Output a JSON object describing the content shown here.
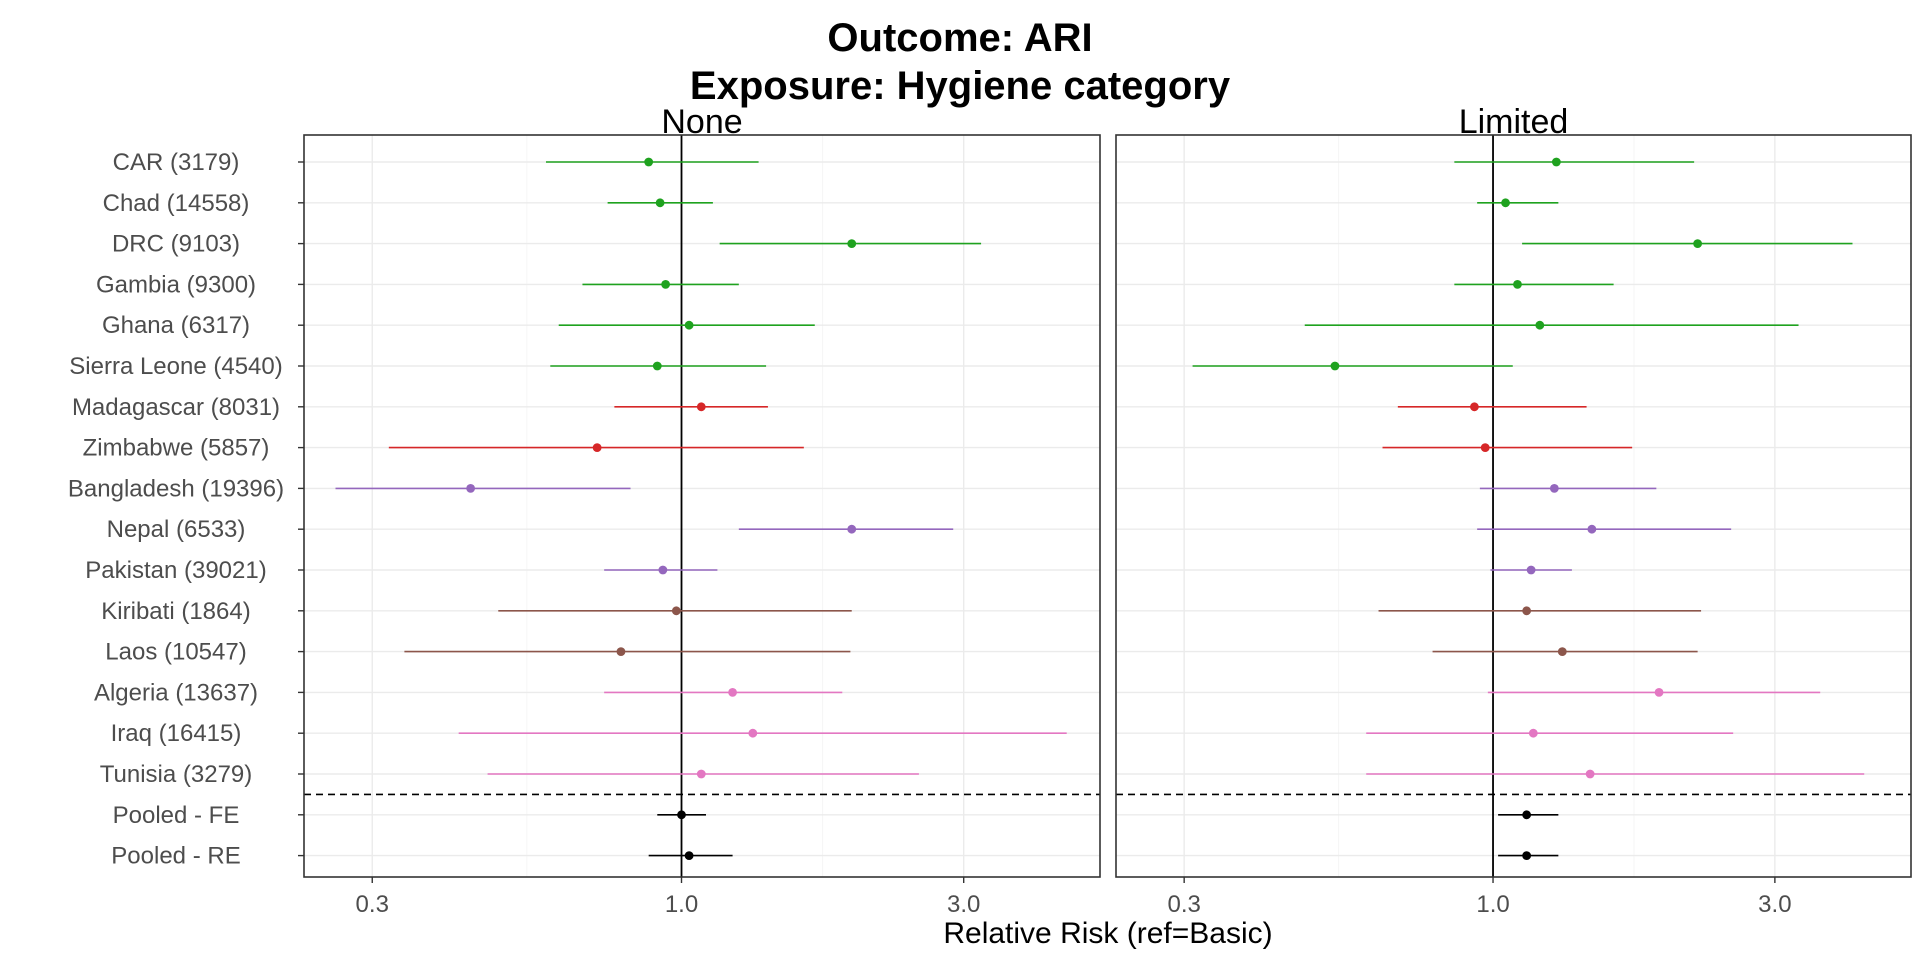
{
  "chart_data": {
    "type": "forest",
    "title_lines": [
      "Outcome: ARI",
      "Exposure: Hygiene category"
    ],
    "xlabel": "Relative Risk (ref=Basic)",
    "x_scale": "log",
    "xlim": [
      0.23,
      5.1
    ],
    "x_ticks": [
      0.3,
      1.0,
      3.0
    ],
    "x_tick_labels": [
      "0.3",
      "1.0",
      "3.0"
    ],
    "reference_line": 1.0,
    "rows": [
      {
        "label": "CAR (3179)",
        "color": "#1fa21f"
      },
      {
        "label": "Chad (14558)",
        "color": "#1fa21f"
      },
      {
        "label": "DRC (9103)",
        "color": "#1fa21f"
      },
      {
        "label": "Gambia (9300)",
        "color": "#1fa21f"
      },
      {
        "label": "Ghana (6317)",
        "color": "#1fa21f"
      },
      {
        "label": "Sierra Leone (4540)",
        "color": "#1fa21f"
      },
      {
        "label": "Madagascar (8031)",
        "color": "#d62728"
      },
      {
        "label": "Zimbabwe (5857)",
        "color": "#d62728"
      },
      {
        "label": "Bangladesh (19396)",
        "color": "#9467bd"
      },
      {
        "label": "Nepal (6533)",
        "color": "#9467bd"
      },
      {
        "label": "Pakistan (39021)",
        "color": "#9467bd"
      },
      {
        "label": "Kiribati (1864)",
        "color": "#8c564b"
      },
      {
        "label": "Laos (10547)",
        "color": "#8c564b"
      },
      {
        "label": "Algeria (13637)",
        "color": "#e377c2"
      },
      {
        "label": "Iraq (16415)",
        "color": "#e377c2"
      },
      {
        "label": "Tunisia (3279)",
        "color": "#e377c2"
      },
      {
        "label": "Pooled - FE",
        "color": "#000000"
      },
      {
        "label": "Pooled - RE",
        "color": "#000000"
      }
    ],
    "pooled_separator_after_row": 16,
    "panels": [
      {
        "name": "None",
        "estimates": [
          {
            "rr": 0.88,
            "lower": 0.59,
            "upper": 1.35
          },
          {
            "rr": 0.92,
            "lower": 0.75,
            "upper": 1.13
          },
          {
            "rr": 1.94,
            "lower": 1.16,
            "upper": 3.21
          },
          {
            "rr": 0.94,
            "lower": 0.68,
            "upper": 1.25
          },
          {
            "rr": 1.03,
            "lower": 0.62,
            "upper": 1.68
          },
          {
            "rr": 0.91,
            "lower": 0.6,
            "upper": 1.39
          },
          {
            "rr": 1.08,
            "lower": 0.77,
            "upper": 1.4
          },
          {
            "rr": 0.72,
            "lower": 0.32,
            "upper": 1.61
          },
          {
            "rr": 0.44,
            "lower": 0.26,
            "upper": 0.82
          },
          {
            "rr": 1.94,
            "lower": 1.25,
            "upper": 2.88
          },
          {
            "rr": 0.93,
            "lower": 0.74,
            "upper": 1.15
          },
          {
            "rr": 0.98,
            "lower": 0.49,
            "upper": 1.94
          },
          {
            "rr": 0.79,
            "lower": 0.34,
            "upper": 1.93
          },
          {
            "rr": 1.22,
            "lower": 0.74,
            "upper": 1.87
          },
          {
            "rr": 1.32,
            "lower": 0.42,
            "upper": 4.48
          },
          {
            "rr": 1.08,
            "lower": 0.47,
            "upper": 2.52
          },
          {
            "rr": 1.0,
            "lower": 0.91,
            "upper": 1.1
          },
          {
            "rr": 1.03,
            "lower": 0.88,
            "upper": 1.22
          }
        ]
      },
      {
        "name": "Limited",
        "estimates": [
          {
            "rr": 1.28,
            "lower": 0.86,
            "upper": 2.19
          },
          {
            "rr": 1.05,
            "lower": 0.94,
            "upper": 1.29
          },
          {
            "rr": 2.22,
            "lower": 1.12,
            "upper": 4.06
          },
          {
            "rr": 1.1,
            "lower": 0.86,
            "upper": 1.6
          },
          {
            "rr": 1.2,
            "lower": 0.48,
            "upper": 3.29
          },
          {
            "rr": 0.54,
            "lower": 0.31,
            "upper": 1.08
          },
          {
            "rr": 0.93,
            "lower": 0.69,
            "upper": 1.44
          },
          {
            "rr": 0.97,
            "lower": 0.65,
            "upper": 1.72
          },
          {
            "rr": 1.27,
            "lower": 0.95,
            "upper": 1.89
          },
          {
            "rr": 1.47,
            "lower": 0.94,
            "upper": 2.53
          },
          {
            "rr": 1.16,
            "lower": 0.99,
            "upper": 1.36
          },
          {
            "rr": 1.14,
            "lower": 0.64,
            "upper": 2.25
          },
          {
            "rr": 1.31,
            "lower": 0.79,
            "upper": 2.22
          },
          {
            "rr": 1.91,
            "lower": 0.98,
            "upper": 3.58
          },
          {
            "rr": 1.17,
            "lower": 0.61,
            "upper": 2.55
          },
          {
            "rr": 1.46,
            "lower": 0.61,
            "upper": 4.25
          },
          {
            "rr": 1.14,
            "lower": 1.02,
            "upper": 1.29
          },
          {
            "rr": 1.14,
            "lower": 1.02,
            "upper": 1.29
          }
        ]
      }
    ]
  }
}
